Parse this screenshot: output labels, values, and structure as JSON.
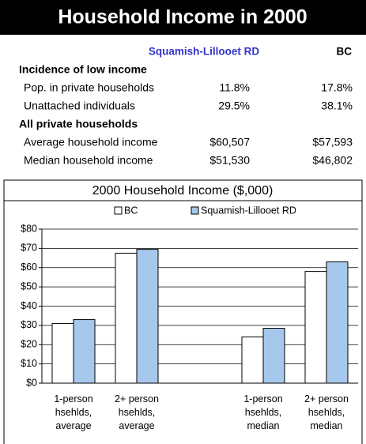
{
  "header": {
    "title": "Household Income in 2000"
  },
  "table": {
    "columns": [
      "Squamish-Lillooet RD",
      "BC"
    ],
    "sections": [
      {
        "title": "Incidence of low income",
        "rows": [
          {
            "label": "Pop. in private households",
            "values": [
              "11.8%",
              "17.8%"
            ]
          },
          {
            "label": "Unattached individuals",
            "values": [
              "29.5%",
              "38.1%"
            ]
          }
        ]
      },
      {
        "title": "All private households",
        "rows": [
          {
            "label": "Average household income",
            "values": [
              "$60,507",
              "$57,593"
            ]
          },
          {
            "label": "Median household income",
            "values": [
              "$51,530",
              "$46,802"
            ]
          }
        ]
      }
    ]
  },
  "chart_data": {
    "type": "bar",
    "title": "2000 Household Income ($,000)",
    "categories": [
      "1-person\nhsehlds,\naverage",
      "2+ person\nhsehlds,\naverage",
      null,
      "1-person\nhsehlds,\nmedian",
      "2+ person\nhsehlds,\nmedian"
    ],
    "series": [
      {
        "name": "BC",
        "color": "#ffffff",
        "values": [
          31,
          67.5,
          null,
          24,
          58
        ]
      },
      {
        "name": "Squamish-Lillooet RD",
        "color": "#a6c8ec",
        "values": [
          33,
          69.5,
          null,
          28.5,
          63
        ]
      }
    ],
    "ylim": [
      0,
      80
    ],
    "yticks": [
      {
        "value": 0,
        "label": "$0"
      },
      {
        "value": 10,
        "label": "$10"
      },
      {
        "value": 20,
        "label": "$20"
      },
      {
        "value": 30,
        "label": "$30"
      },
      {
        "value": 40,
        "label": "$40"
      },
      {
        "value": 50,
        "label": "$50"
      },
      {
        "value": 60,
        "label": "$60"
      },
      {
        "value": 70,
        "label": "$70"
      },
      {
        "value": 80,
        "label": "$80"
      }
    ],
    "grid": true,
    "legend": "top"
  }
}
